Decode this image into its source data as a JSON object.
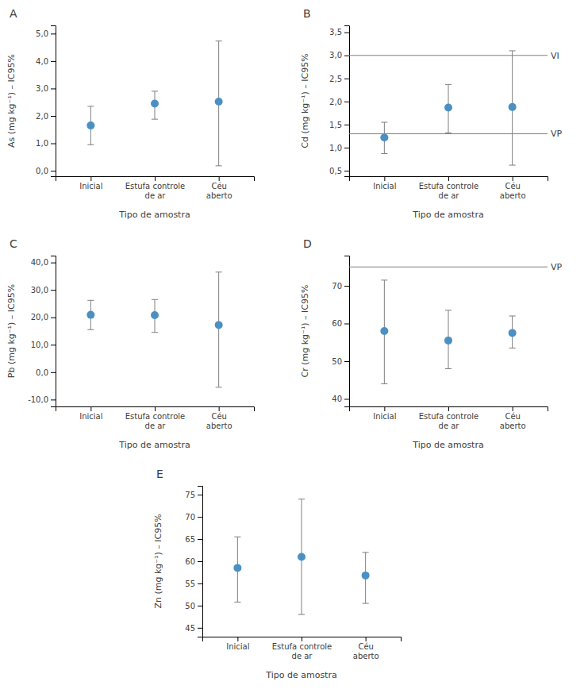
{
  "chart_data": [
    {
      "type": "dot",
      "title": "A",
      "ylabel": "As (mg kg⁻¹) – IC95%",
      "xlabel": "Tipo de amostra",
      "categories": [
        "Inicial",
        "Estufa controle\nde ar",
        "Céu\naberto"
      ],
      "values": [
        1.65,
        2.45,
        2.52
      ],
      "ci_low": [
        0.95,
        1.88,
        0.18
      ],
      "ci_high": [
        2.35,
        2.9,
        4.73
      ],
      "color": "#4a90c4",
      "ylim": [
        -0.2,
        5.3
      ],
      "yticks": [
        {
          "value": 0.0,
          "label": "0,0"
        },
        {
          "value": 1.0,
          "label": "1,0"
        },
        {
          "value": 2.0,
          "label": "2,0"
        },
        {
          "value": 3.0,
          "label": "3,0"
        },
        {
          "value": 4.0,
          "label": "4,0"
        },
        {
          "value": 5.0,
          "label": "5,0"
        }
      ],
      "reference_lines": []
    },
    {
      "type": "dot",
      "title": "B",
      "ylabel": "Cd (mg kg⁻¹) – IC95%",
      "xlabel": "Tipo de amostra",
      "categories": [
        "Inicial",
        "Estufa controle\nde ar",
        "Céu\naberto"
      ],
      "values": [
        1.22,
        1.87,
        1.88
      ],
      "ci_low": [
        0.87,
        1.32,
        0.62
      ],
      "ci_high": [
        1.55,
        2.37,
        3.1
      ],
      "color": "#4a90c4",
      "ylim": [
        0.38,
        3.65
      ],
      "yticks": [
        {
          "value": 0.5,
          "label": "0,5"
        },
        {
          "value": 1.0,
          "label": "1,0"
        },
        {
          "value": 1.5,
          "label": "1,5"
        },
        {
          "value": 2.0,
          "label": "2,0"
        },
        {
          "value": 2.5,
          "label": "2,5"
        },
        {
          "value": 3.0,
          "label": "3,0"
        },
        {
          "value": 3.5,
          "label": "3,5"
        }
      ],
      "reference_lines": [
        {
          "value": 3.0,
          "label": "VI"
        },
        {
          "value": 1.3,
          "label": "VP"
        }
      ]
    },
    {
      "type": "dot",
      "title": "C",
      "ylabel": "Pb (mg kg⁻¹) – IC95%",
      "xlabel": "Tipo de amostra",
      "categories": [
        "Inicial",
        "Estufa controle\nde ar",
        "Céu\naberto"
      ],
      "values": [
        20.9,
        20.8,
        17.2
      ],
      "ci_low": [
        15.5,
        14.5,
        -5.5
      ],
      "ci_high": [
        26.2,
        26.5,
        36.5
      ],
      "color": "#4a90c4",
      "ylim": [
        -12.5,
        42.5
      ],
      "yticks": [
        {
          "value": -10.0,
          "label": "-10,0"
        },
        {
          "value": 0.0,
          "label": "0,0"
        },
        {
          "value": 10.0,
          "label": "10,0"
        },
        {
          "value": 20.0,
          "label": "20,0"
        },
        {
          "value": 30.0,
          "label": "30,0"
        },
        {
          "value": 40.0,
          "label": "40,0"
        }
      ],
      "reference_lines": []
    },
    {
      "type": "dot",
      "title": "D",
      "ylabel": "Cr (mg kg⁻¹) – IC95%",
      "xlabel": "Tipo de amostra",
      "categories": [
        "Inicial",
        "Estufa controle\nde ar",
        "Céu\naberto"
      ],
      "values": [
        58.0,
        55.5,
        57.5
      ],
      "ci_low": [
        44.0,
        48.0,
        53.5
      ],
      "ci_high": [
        71.5,
        63.5,
        62.0
      ],
      "color": "#4a90c4",
      "ylim": [
        38.0,
        78.0
      ],
      "yticks": [
        40,
        50,
        60,
        70
      ],
      "reference_lines": [
        {
          "value": 75.0,
          "label": "VP"
        }
      ]
    },
    {
      "type": "dot",
      "title": "E",
      "ylabel": "Zn (mg kg⁻¹) – IC95%",
      "xlabel": "Tipo de amostra",
      "categories": [
        "Inicial",
        "Estufa controle\nde ar",
        "Céu\naberto"
      ],
      "values": [
        58.5,
        61.0,
        56.8
      ],
      "ci_low": [
        50.8,
        48.0,
        50.5
      ],
      "ci_high": [
        65.5,
        74.0,
        62.0
      ],
      "color": "#4a90c4",
      "ylim": [
        43.0,
        77.0
      ],
      "yticks": [
        45,
        50,
        55,
        60,
        65,
        70,
        75
      ],
      "reference_lines": []
    }
  ]
}
